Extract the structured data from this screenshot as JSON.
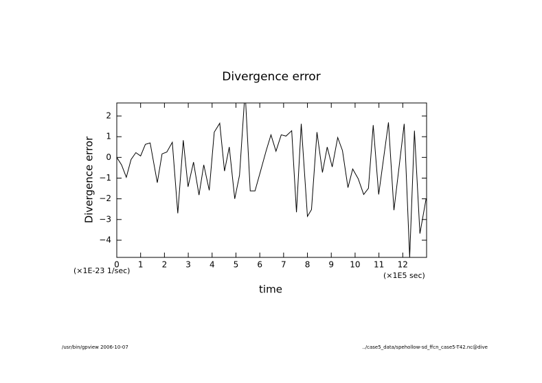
{
  "chart_data": {
    "type": "line",
    "title": "Divergence error",
    "ylabel": "Divergence error",
    "xlabel": "time",
    "yunit": "(×1E-23 1/sec)",
    "xunit": "(×1E5 sec)",
    "footer_left": "/usr/bin/gpview  2006-10-07",
    "footer_right": "../case5_data/spehollow-sd_ffcn_case5-T42.nc@dive",
    "xlim": [
      0,
      13
    ],
    "ylim": [
      -4.83,
      2.63
    ],
    "xticks": [
      0,
      1,
      2,
      3,
      4,
      5,
      6,
      7,
      8,
      9,
      10,
      11,
      12
    ],
    "yticks": [
      {
        "value": -4,
        "label": "−4"
      },
      {
        "value": -3,
        "label": "−3"
      },
      {
        "value": -2,
        "label": "−2"
      },
      {
        "value": -1,
        "label": "−1"
      },
      0,
      1,
      2
    ],
    "x": [
      0,
      0.2,
      0.4,
      0.6,
      0.8,
      1.0,
      1.2,
      1.4,
      1.7,
      1.9,
      2.1,
      2.33,
      2.56,
      2.79,
      2.99,
      3.22,
      3.45,
      3.65,
      3.88,
      4.09,
      4.32,
      4.52,
      4.72,
      4.95,
      5.15,
      5.35,
      5.41,
      5.6,
      5.8,
      6.04,
      6.27,
      6.47,
      6.68,
      6.9,
      7.1,
      7.34,
      7.54,
      7.74,
      8.0,
      8.17,
      8.4,
      8.63,
      8.83,
      9.04,
      9.27,
      9.47,
      9.7,
      9.9,
      10.13,
      10.36,
      10.56,
      10.76,
      10.99,
      11.4,
      11.63,
      12.06,
      12.29,
      12.49,
      12.72,
      12.98
    ],
    "series": [
      {
        "name": "Divergence error",
        "color": "#000000",
        "values": [
          0,
          -0.36,
          -0.96,
          -0.1,
          0.23,
          0.07,
          0.63,
          0.7,
          -1.22,
          0.17,
          0.26,
          0.73,
          -2.7,
          0.83,
          -1.42,
          -0.23,
          -1.82,
          -0.36,
          -1.59,
          1.22,
          1.65,
          -0.66,
          0.5,
          -2.0,
          -0.86,
          2.63,
          2.63,
          -1.62,
          -1.62,
          -0.63,
          0.33,
          1.09,
          0.3,
          1.09,
          1.03,
          1.29,
          -2.65,
          1.62,
          -2.85,
          -2.52,
          1.22,
          -0.73,
          0.5,
          -0.46,
          0.96,
          0.33,
          -1.46,
          -0.56,
          -1.03,
          -1.79,
          -1.49,
          1.56,
          -1.79,
          1.69,
          -2.55,
          1.62,
          -4.83,
          1.29,
          -3.68,
          -1.99
        ]
      }
    ]
  }
}
